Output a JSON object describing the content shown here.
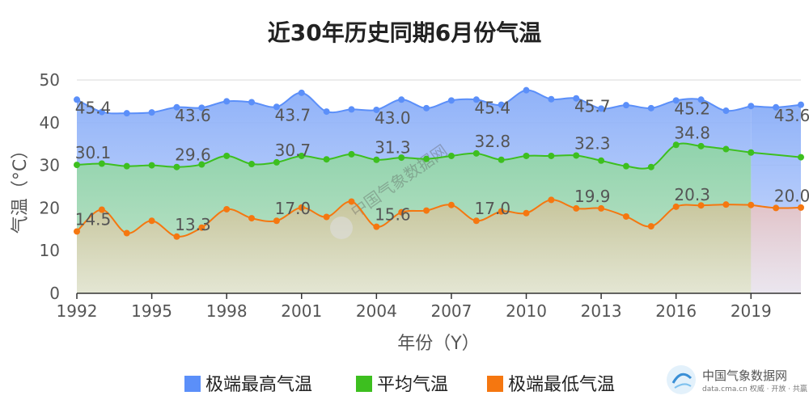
{
  "chart_data": {
    "type": "line",
    "title": "近30年历史同期6月份气温",
    "xlabel": "年份（Y）",
    "ylabel": "气温（°C）",
    "ylim": [
      0,
      50
    ],
    "yticks": [
      "0",
      "10",
      "20",
      "30",
      "40",
      "50"
    ],
    "xticks": [
      "1992",
      "1995",
      "1998",
      "2001",
      "2004",
      "2007",
      "2010",
      "2013",
      "2016",
      "2019"
    ],
    "grid": true,
    "legend": "bottom",
    "x": [
      1992,
      1993,
      1994,
      1995,
      1996,
      1997,
      1998,
      1999,
      2000,
      2001,
      2002,
      2003,
      2004,
      2005,
      2006,
      2007,
      2008,
      2009,
      2010,
      2011,
      2012,
      2013,
      2014,
      2015,
      2016,
      2017,
      2018,
      2019,
      2020,
      2021
    ],
    "series": [
      {
        "name": "极端最高气温",
        "color": "#5b8ff9",
        "values": [
          45.4,
          42.5,
          42.2,
          42.4,
          43.6,
          43.5,
          45.0,
          44.8,
          43.7,
          47.0,
          42.6,
          43.1,
          43.0,
          45.4,
          43.4,
          45.2,
          45.4,
          44.2,
          47.6,
          45.5,
          45.7,
          43.3,
          44.1,
          43.4,
          45.2,
          45.4,
          42.8,
          43.9,
          43.6,
          44.2
        ]
      },
      {
        "name": "平均气温",
        "color": "#3dbf1f",
        "values": [
          30.1,
          30.4,
          29.8,
          30.0,
          29.6,
          30.2,
          32.2,
          30.3,
          30.7,
          32.2,
          31.4,
          32.6,
          31.3,
          31.8,
          31.5,
          32.2,
          32.8,
          31.3,
          32.2,
          32.2,
          32.3,
          31.1,
          29.8,
          29.6,
          34.8,
          34.5,
          33.8,
          33.0,
          null,
          31.9
        ]
      },
      {
        "name": "极端最低气温",
        "color": "#f57710",
        "values": [
          14.5,
          19.6,
          14.1,
          17.0,
          13.3,
          15.4,
          19.7,
          17.6,
          17.0,
          20.1,
          17.9,
          21.5,
          15.6,
          19.0,
          19.4,
          20.7,
          17.0,
          19.2,
          18.8,
          21.9,
          19.9,
          19.9,
          18.0,
          15.7,
          20.3,
          20.6,
          20.8,
          20.7,
          20.0,
          20.1
        ]
      }
    ],
    "data_labels": {
      "极端最高气温": [
        [
          1992,
          "45.4"
        ],
        [
          1996,
          "43.6"
        ],
        [
          2000,
          "43.7"
        ],
        [
          2004,
          "43.0"
        ],
        [
          2008,
          "45.4"
        ],
        [
          2012,
          "45.7"
        ],
        [
          2016,
          "45.2"
        ],
        [
          2020,
          "43.6"
        ]
      ],
      "平均气温": [
        [
          1992,
          "30.1"
        ],
        [
          1996,
          "29.6"
        ],
        [
          2000,
          "30.7"
        ],
        [
          2004,
          "31.3"
        ],
        [
          2008,
          "32.8"
        ],
        [
          2012,
          "32.3"
        ],
        [
          2016,
          "34.8"
        ]
      ],
      "极端最低气温": [
        [
          1992,
          "14.5"
        ],
        [
          1996,
          "13.3"
        ],
        [
          2000,
          "17.0"
        ],
        [
          2004,
          "15.6"
        ],
        [
          2008,
          "17.0"
        ],
        [
          2012,
          "19.9"
        ],
        [
          2016,
          "20.3"
        ],
        [
          2020,
          "20.0"
        ]
      ]
    },
    "forecast_from": 2019,
    "forecast_color": "#e8b4b4"
  },
  "watermark": {
    "center_text": "中国气象数据网",
    "logo_title": "中国气象数据网",
    "logo_sub": "data.cma.cn 权威 · 开放 · 共赢"
  }
}
